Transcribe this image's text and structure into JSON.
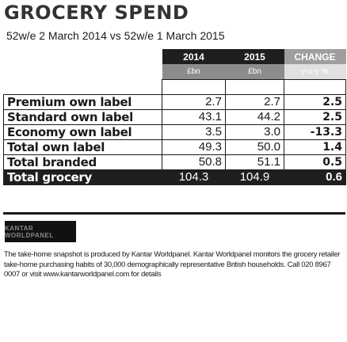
{
  "title": "GROCERY SPEND",
  "subtitle": "52w/e 2 March 2014 vs 52w/e 1 March 2015",
  "table": {
    "headers": [
      "2014",
      "2015",
      "CHANGE"
    ],
    "units": [
      "£bn",
      "£bn",
      "y-o-y %"
    ],
    "rows": [
      {
        "label": "Premium own label",
        "v2014": "2.7",
        "v2015": "2.7",
        "change": "2.5"
      },
      {
        "label": "Standard own label",
        "v2014": "43.1",
        "v2015": "44.2",
        "change": "2.5"
      },
      {
        "label": "Economy own label",
        "v2014": "3.5",
        "v2015": "3.0",
        "change": "-13.3"
      },
      {
        "label": "Total own label",
        "v2014": "49.3",
        "v2015": "50.0",
        "change": "1.4"
      },
      {
        "label": "Total branded",
        "v2014": "50.8",
        "v2015": "51.1",
        "change": "0.5"
      }
    ],
    "total": {
      "label": "Total grocery",
      "v2014": "104.3",
      "v2015": "104.9",
      "change": "0.6"
    }
  },
  "logo_text": "KANTAR WORLDPANEL",
  "footnote": "The take-home snapshot is produced by Kantar Worldpanel. Kantar Worldpanel monitors the grocery retailer take-home purchasing habits of 30,000 demographically representative British households. Call 020 8967 0007 or visit www.kantarworldpanel.com for details"
}
